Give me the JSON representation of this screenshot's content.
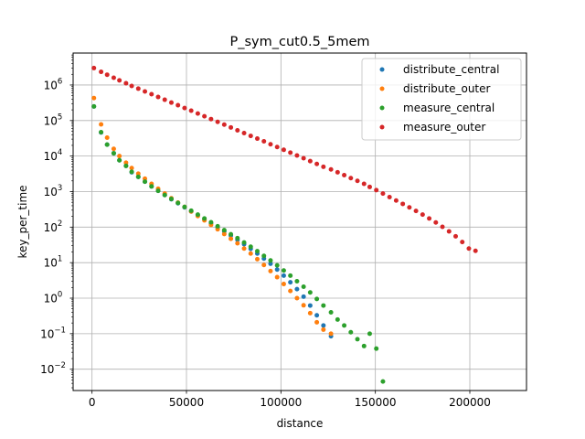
{
  "chart_data": {
    "type": "scatter",
    "title": "P_sym_cut0.5_5mem",
    "xlabel": "distance",
    "ylabel": "key_per_time",
    "xlim": [
      -10000,
      230000
    ],
    "ylim_log10": [
      -2.6,
      6.9
    ],
    "yscale": "log",
    "grid": true,
    "legend_position": "upper right",
    "x_ticks": [
      0,
      50000,
      100000,
      150000,
      200000
    ],
    "x_tick_labels": [
      "0",
      "50000",
      "100000",
      "150000",
      "200000"
    ],
    "y_tick_exponents": [
      -2,
      -1,
      0,
      1,
      2,
      3,
      4,
      5,
      6
    ],
    "series": [
      {
        "name": "distribute_central",
        "color": "#1f77b4",
        "points": [
          [
            1000,
            250000.0
          ],
          [
            4800,
            46000.0
          ],
          [
            8000,
            21000.0
          ],
          [
            11500,
            12000.0
          ],
          [
            14500,
            7600.0
          ],
          [
            18000,
            5300.0
          ],
          [
            21000,
            3500.0
          ],
          [
            24500,
            2600.0
          ],
          [
            28000,
            1900.0
          ],
          [
            31500,
            1400.0
          ],
          [
            35000,
            1050.0
          ],
          [
            38500,
            800
          ],
          [
            42000,
            610
          ],
          [
            45500,
            470
          ],
          [
            49000,
            360
          ],
          [
            52500,
            275
          ],
          [
            56000,
            215
          ],
          [
            59500,
            165
          ],
          [
            63000,
            128
          ],
          [
            66500,
            99
          ],
          [
            70000,
            76
          ],
          [
            73500,
            58
          ],
          [
            77000,
            44
          ],
          [
            80500,
            33
          ],
          [
            84000,
            24.5
          ],
          [
            87500,
            18
          ],
          [
            91000,
            13
          ],
          [
            94500,
            9.3
          ],
          [
            98000,
            6.4
          ],
          [
            101500,
            4.3
          ],
          [
            105000,
            2.8
          ],
          [
            108500,
            1.8
          ],
          [
            112000,
            1.1
          ],
          [
            115500,
            0.62
          ],
          [
            119000,
            0.33
          ],
          [
            122500,
            0.17
          ],
          [
            126500,
            0.085
          ]
        ]
      },
      {
        "name": "distribute_outer",
        "color": "#ff7f0e",
        "points": [
          [
            1000,
            430000.0
          ],
          [
            4800,
            78000.0
          ],
          [
            8000,
            33000.0
          ],
          [
            11500,
            16000.0
          ],
          [
            14500,
            10000.0
          ],
          [
            18000,
            6500.0
          ],
          [
            21000,
            4600.0
          ],
          [
            24500,
            3200.0
          ],
          [
            28000,
            2300.0
          ],
          [
            31500,
            1650.0
          ],
          [
            35000,
            1200.0
          ],
          [
            38500,
            880
          ],
          [
            42000,
            650
          ],
          [
            45500,
            490
          ],
          [
            49000,
            370
          ],
          [
            52500,
            275
          ],
          [
            56000,
            205
          ],
          [
            59500,
            155
          ],
          [
            63000,
            116
          ],
          [
            66500,
            87
          ],
          [
            70000,
            64
          ],
          [
            73500,
            47
          ],
          [
            77000,
            35
          ],
          [
            80500,
            25
          ],
          [
            84000,
            18
          ],
          [
            87500,
            12.5
          ],
          [
            91000,
            8.6
          ],
          [
            94500,
            5.8
          ],
          [
            98000,
            3.9
          ],
          [
            101500,
            2.5
          ],
          [
            105000,
            1.6
          ],
          [
            108500,
            1.0
          ],
          [
            112000,
            0.63
          ],
          [
            115500,
            0.38
          ],
          [
            119000,
            0.21
          ],
          [
            122500,
            0.13
          ],
          [
            126500,
            0.1
          ]
        ]
      },
      {
        "name": "measure_central",
        "color": "#2ca02c",
        "points": [
          [
            1000,
            250000.0
          ],
          [
            4800,
            47000.0
          ],
          [
            8000,
            21000.0
          ],
          [
            11500,
            12000.0
          ],
          [
            14500,
            7600.0
          ],
          [
            18000,
            5300.0
          ],
          [
            21000,
            3600.0
          ],
          [
            24500,
            2600.0
          ],
          [
            28000,
            1900.0
          ],
          [
            31500,
            1400.0
          ],
          [
            35000,
            1050.0
          ],
          [
            38500,
            800
          ],
          [
            42000,
            620
          ],
          [
            45500,
            480
          ],
          [
            49000,
            370
          ],
          [
            52500,
            290
          ],
          [
            56000,
            225
          ],
          [
            59500,
            175
          ],
          [
            63000,
            137
          ],
          [
            66500,
            106
          ],
          [
            70000,
            82
          ],
          [
            73500,
            63
          ],
          [
            77000,
            49
          ],
          [
            80500,
            37
          ],
          [
            84000,
            28
          ],
          [
            87500,
            21
          ],
          [
            91000,
            15.5
          ],
          [
            94500,
            11.5
          ],
          [
            98000,
            8.4
          ],
          [
            101500,
            6.0
          ],
          [
            105000,
            4.3
          ],
          [
            108500,
            3.0
          ],
          [
            112000,
            2.1
          ],
          [
            115500,
            1.45
          ],
          [
            119000,
            0.95
          ],
          [
            122500,
            0.62
          ],
          [
            126500,
            0.4
          ],
          [
            130000,
            0.25
          ],
          [
            133500,
            0.17
          ],
          [
            137000,
            0.11
          ],
          [
            140500,
            0.07
          ],
          [
            144000,
            0.045
          ],
          [
            147000,
            0.1
          ],
          [
            150500,
            0.038
          ],
          [
            154000,
            0.0045
          ]
        ]
      },
      {
        "name": "measure_outer",
        "color": "#d62728",
        "points": [
          [
            1000,
            3000000.0
          ],
          [
            4800,
            2350000.0
          ],
          [
            8000,
            1950000.0
          ],
          [
            11500,
            1600000.0
          ],
          [
            14500,
            1350000.0
          ],
          [
            18000,
            1120000.0
          ],
          [
            21000,
            940000.0
          ],
          [
            24500,
            790000.0
          ],
          [
            28000,
            660000.0
          ],
          [
            31500,
            550000.0
          ],
          [
            35000,
            460000.0
          ],
          [
            38500,
            385000.0
          ],
          [
            42000,
            320000.0
          ],
          [
            45500,
            270000.0
          ],
          [
            49000,
            225000.0
          ],
          [
            52500,
            190000.0
          ],
          [
            56000,
            158000.0
          ],
          [
            59500,
            132000.0
          ],
          [
            63000,
            110000.0
          ],
          [
            66500,
            92000.0
          ],
          [
            70000,
            77000.0
          ],
          [
            73500,
            64000.0
          ],
          [
            77000,
            53000.0
          ],
          [
            80500,
            44500.0
          ],
          [
            84000,
            37000.0
          ],
          [
            87500,
            31000.0
          ],
          [
            91000,
            26000.0
          ],
          [
            94500,
            21500.0
          ],
          [
            98000,
            18000.0
          ],
          [
            101500,
            15000.0
          ],
          [
            105000,
            12500.0
          ],
          [
            108500,
            10400.0
          ],
          [
            112000,
            8700.0
          ],
          [
            115500,
            7200.0
          ],
          [
            119000,
            6000.0
          ],
          [
            122500,
            5000.0
          ],
          [
            126500,
            4200.0
          ],
          [
            130000,
            3500.0
          ],
          [
            133500,
            2900.0
          ],
          [
            137000,
            2400.0
          ],
          [
            140500,
            2000.0
          ],
          [
            144000,
            1650.0
          ],
          [
            147000,
            1350.0
          ],
          [
            150500,
            1100.0
          ],
          [
            154000,
            880
          ],
          [
            157500,
            700
          ],
          [
            161000,
            560
          ],
          [
            164500,
            450
          ],
          [
            168000,
            360
          ],
          [
            171500,
            285
          ],
          [
            175000,
            225
          ],
          [
            178500,
            175
          ],
          [
            182000,
            135
          ],
          [
            185500,
            102
          ],
          [
            189000,
            76
          ],
          [
            192500,
            55
          ],
          [
            196000,
            38
          ],
          [
            199500,
            25
          ],
          [
            203000,
            21.5
          ]
        ]
      }
    ]
  }
}
